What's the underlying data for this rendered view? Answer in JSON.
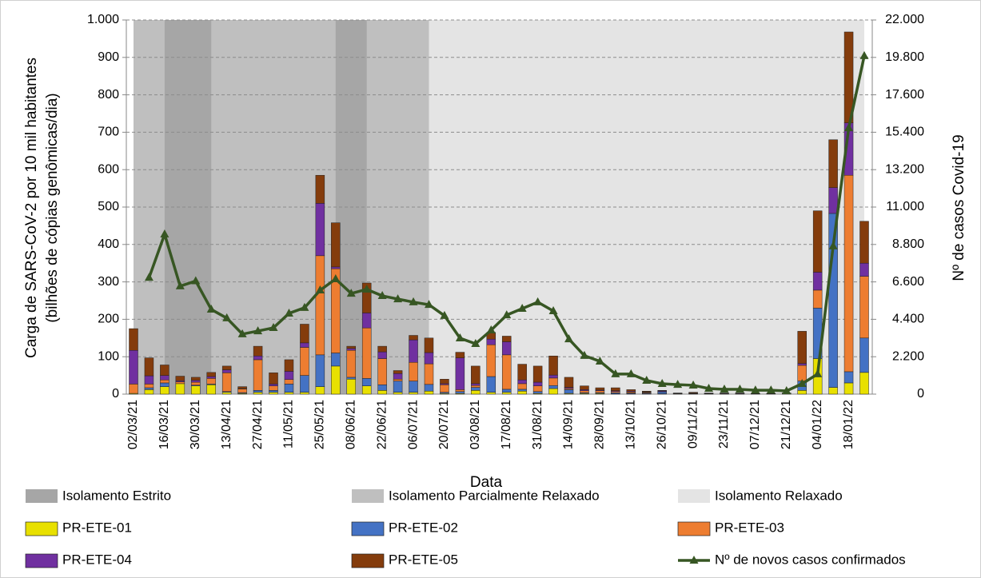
{
  "chart_data": {
    "type": "bar",
    "stacked": true,
    "xlabel": "Data",
    "ylabel": [
      "Carga de SARS-CoV-2 por 10 mil habitantes",
      "(bilhões de cópias genômicas/dia)"
    ],
    "y2label": "Nº de casos Covid-19",
    "categories": [
      "02/03/21",
      null,
      "16/03/21",
      null,
      "30/03/21",
      null,
      "13/04/21",
      null,
      "27/04/21",
      null,
      "11/05/21",
      null,
      "25/05/21",
      null,
      "08/06/21",
      null,
      "22/06/21",
      null,
      "06/07/21",
      null,
      "20/07/21",
      null,
      "03/08/21",
      null,
      "17/08/21",
      null,
      "31/08/21",
      null,
      "14/09/21",
      null,
      "28/09/21",
      null,
      "13/10/21",
      null,
      "26/10/21",
      null,
      "09/11/21",
      null,
      "23/11/21",
      null,
      "07/12/21",
      null,
      "21/12/21",
      null,
      "04/01/22",
      null,
      "18/01/22",
      null
    ],
    "periods": [
      {
        "name": "Isolamento Estrito",
        "color": "#a6a6a6"
      },
      {
        "name": "Isolamento Parcialmente Relaxado",
        "color": "#bfbfbf"
      },
      {
        "name": "Isolamento Relaxado",
        "color": "#e4e4e4"
      }
    ],
    "series": [
      {
        "name": "PR-ETE-01",
        "color": "#e8e000",
        "values": [
          2,
          12,
          20,
          28,
          22,
          25,
          5,
          2,
          5,
          5,
          5,
          5,
          20,
          75,
          40,
          22,
          10,
          5,
          5,
          8,
          2,
          2,
          10,
          5,
          5,
          8,
          2,
          15,
          2,
          2,
          2,
          1,
          1,
          1,
          1,
          1,
          1,
          1,
          1,
          1,
          1,
          1,
          1,
          10,
          95,
          18,
          30,
          58
        ]
      },
      {
        "name": "PR-ETE-02",
        "color": "#4472c4",
        "values": [
          0,
          5,
          10,
          0,
          2,
          2,
          2,
          2,
          5,
          5,
          22,
          45,
          85,
          35,
          5,
          20,
          15,
          30,
          30,
          18,
          3,
          5,
          8,
          42,
          8,
          5,
          5,
          8,
          10,
          2,
          2,
          3,
          2,
          2,
          5,
          0,
          1,
          0,
          0,
          0,
          0,
          0,
          0,
          25,
          135,
          465,
          30,
          92
        ]
      },
      {
        "name": "PR-ETE-03",
        "color": "#ed7d31",
        "values": [
          25,
          10,
          8,
          5,
          8,
          15,
          50,
          10,
          82,
          12,
          12,
          75,
          265,
          225,
          72,
          135,
          70,
          5,
          50,
          55,
          20,
          5,
          5,
          85,
          92,
          15,
          15,
          20,
          3,
          5,
          5,
          3,
          3,
          2,
          1,
          1,
          1,
          1,
          1,
          1,
          0,
          0,
          1,
          42,
          48,
          0,
          525,
          165
        ]
      },
      {
        "name": "PR-ETE-04",
        "color": "#7030a0",
        "values": [
          90,
          22,
          12,
          3,
          5,
          5,
          8,
          1,
          10,
          5,
          22,
          12,
          140,
          5,
          5,
          40,
          18,
          15,
          60,
          30,
          3,
          85,
          5,
          15,
          35,
          10,
          10,
          8,
          3,
          3,
          2,
          2,
          2,
          1,
          2,
          0,
          0,
          0,
          0,
          0,
          0,
          0,
          0,
          5,
          48,
          69,
          140,
          35
        ]
      },
      {
        "name": "PR-ETE-05",
        "color": "#843c0c",
        "values": [
          58,
          48,
          28,
          12,
          8,
          11,
          10,
          5,
          26,
          30,
          31,
          50,
          75,
          118,
          6,
          80,
          15,
          8,
          12,
          39,
          12,
          15,
          47,
          18,
          15,
          42,
          43,
          51,
          27,
          10,
          6,
          8,
          4,
          2,
          1,
          1,
          2,
          1,
          1,
          1,
          1,
          1,
          1,
          86,
          164,
          128,
          243,
          112
        ]
      },
      {
        "name": "Nº de novos casos confirmados",
        "color": "#375623",
        "axis": "y2",
        "type": "line",
        "values": [
          null,
          6850,
          9400,
          6350,
          6650,
          4980,
          4470,
          3530,
          3710,
          3900,
          4750,
          5080,
          6110,
          6770,
          5920,
          6160,
          5780,
          5590,
          5410,
          5260,
          4610,
          3290,
          2960,
          3760,
          4650,
          5030,
          5410,
          4890,
          3240,
          2260,
          1930,
          1180,
          1180,
          800,
          610,
          560,
          520,
          330,
          280,
          280,
          230,
          230,
          190,
          610,
          1180,
          8700,
          15650,
          19890
        ]
      }
    ],
    "ylim": [
      0,
      1000
    ],
    "yticks": [
      0,
      100,
      200,
      300,
      400,
      500,
      600,
      700,
      800,
      900,
      {
        "value": 1000,
        "label": "1.000"
      }
    ],
    "y2lim": [
      0,
      22000
    ],
    "y2ticks": [
      0,
      {
        "value": 2200,
        "label": "2.200"
      },
      {
        "value": 4400,
        "label": "4.400"
      },
      {
        "value": 6600,
        "label": "6.600"
      },
      {
        "value": 8800,
        "label": "8.800"
      },
      {
        "value": 11000,
        "label": "11.000"
      },
      {
        "value": 13200,
        "label": "13.200"
      },
      {
        "value": 15400,
        "label": "15.400"
      },
      {
        "value": 17600,
        "label": "17.600"
      },
      {
        "value": 19800,
        "label": "19.800"
      },
      {
        "value": 22000,
        "label": "22.000"
      }
    ],
    "grid": true
  }
}
